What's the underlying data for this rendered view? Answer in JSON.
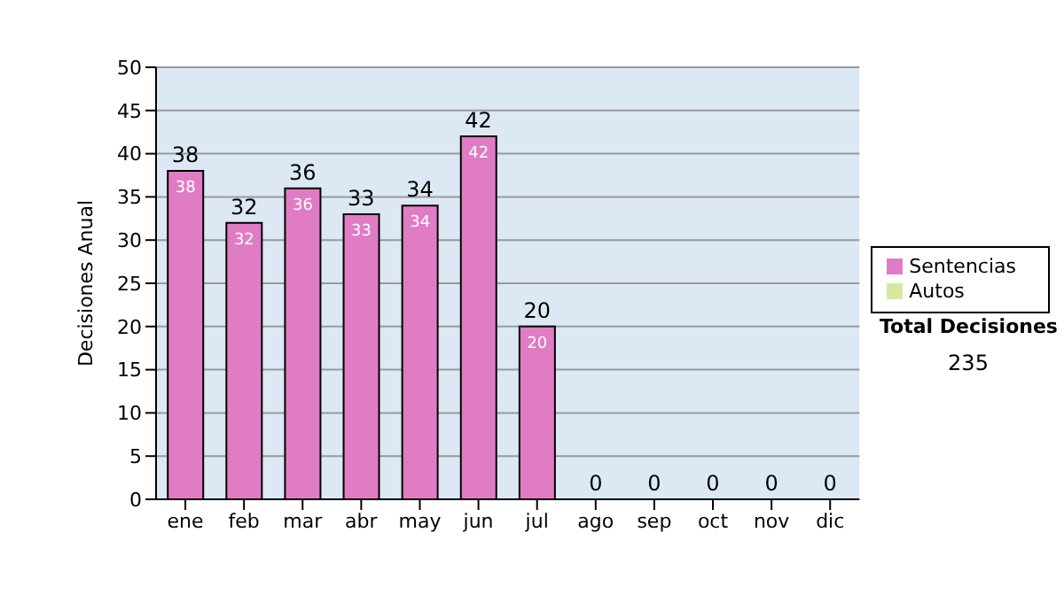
{
  "chart_data": {
    "type": "bar",
    "stacked": true,
    "categories": [
      "ene",
      "feb",
      "mar",
      "abr",
      "may",
      "jun",
      "jul",
      "ago",
      "sep",
      "oct",
      "nov",
      "dic"
    ],
    "series": [
      {
        "name": "Sentencias",
        "color": "#e07cc4",
        "values": [
          38,
          32,
          36,
          33,
          34,
          42,
          20,
          0,
          0,
          0,
          0,
          0
        ],
        "value_labels": [
          "38",
          "32",
          "36",
          "33",
          "34",
          "42",
          "20",
          null,
          null,
          null,
          null,
          null
        ]
      },
      {
        "name": "Autos",
        "color": "#d4e8a0",
        "values": [
          0,
          0,
          0,
          0,
          0,
          0,
          0,
          0,
          0,
          0,
          0,
          0
        ]
      }
    ],
    "totals": [
      "38",
      "32",
      "36",
      "33",
      "34",
      "42",
      "20",
      "0",
      "0",
      "0",
      "0",
      "0"
    ],
    "ylabel": "Decisiones Anual",
    "ylim": [
      0,
      50
    ],
    "yticks": [
      0,
      5,
      10,
      15,
      20,
      25,
      30,
      35,
      40,
      45,
      50
    ],
    "grid": "y",
    "legend": "right",
    "annotations": [
      "Total Decisiones",
      "235"
    ]
  }
}
